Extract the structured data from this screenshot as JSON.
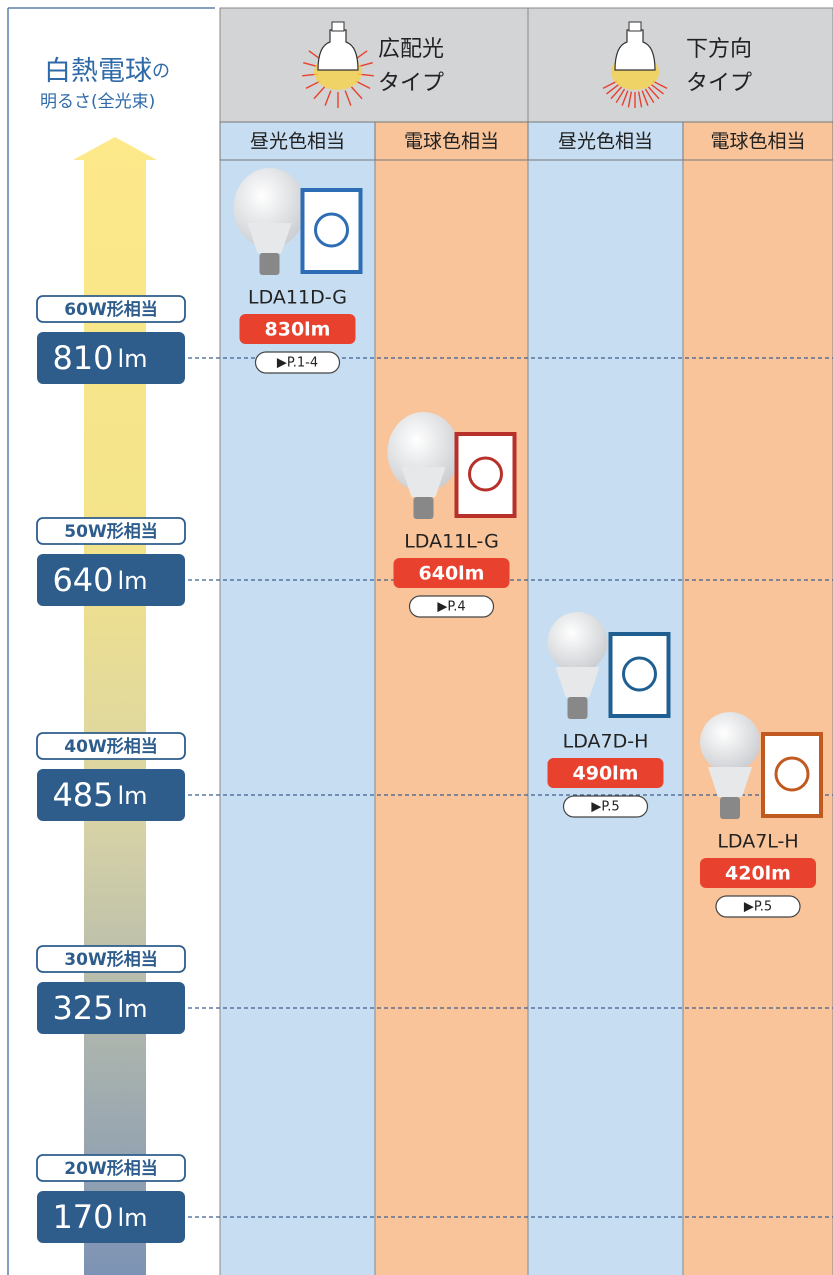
{
  "header": {
    "title": "白熱電球",
    "title_suffix": "の",
    "subtitle": "明るさ(全光束)"
  },
  "groups": [
    {
      "label": [
        "広配光",
        "タイプ"
      ],
      "columns": [
        {
          "label": "昼光色相当",
          "product": {
            "model": "LDA11D-G",
            "lumen": "830lm",
            "page": "▶P.1-4"
          }
        },
        {
          "label": "電球色相当",
          "product": {
            "model": "LDA11L-G",
            "lumen": "640lm",
            "page": "▶P.4"
          }
        }
      ]
    },
    {
      "label": [
        "下方向",
        "タイプ"
      ],
      "columns": [
        {
          "label": "昼光色相当",
          "product": {
            "model": "LDA7D-H",
            "lumen": "490lm",
            "page": "▶P.5"
          }
        },
        {
          "label": "電球色相当",
          "product": {
            "model": "LDA7L-H",
            "lumen": "420lm",
            "page": "▶P.5"
          }
        }
      ]
    }
  ],
  "levels": [
    {
      "watt": "60W形相当",
      "lumen": "810",
      "unit": "lm"
    },
    {
      "watt": "50W形相当",
      "lumen": "640",
      "unit": "lm"
    },
    {
      "watt": "40W形相当",
      "lumen": "485",
      "unit": "lm"
    },
    {
      "watt": "30W形相当",
      "lumen": "325",
      "unit": "lm"
    },
    {
      "watt": "20W形相当",
      "lumen": "170",
      "unit": "lm"
    }
  ]
}
